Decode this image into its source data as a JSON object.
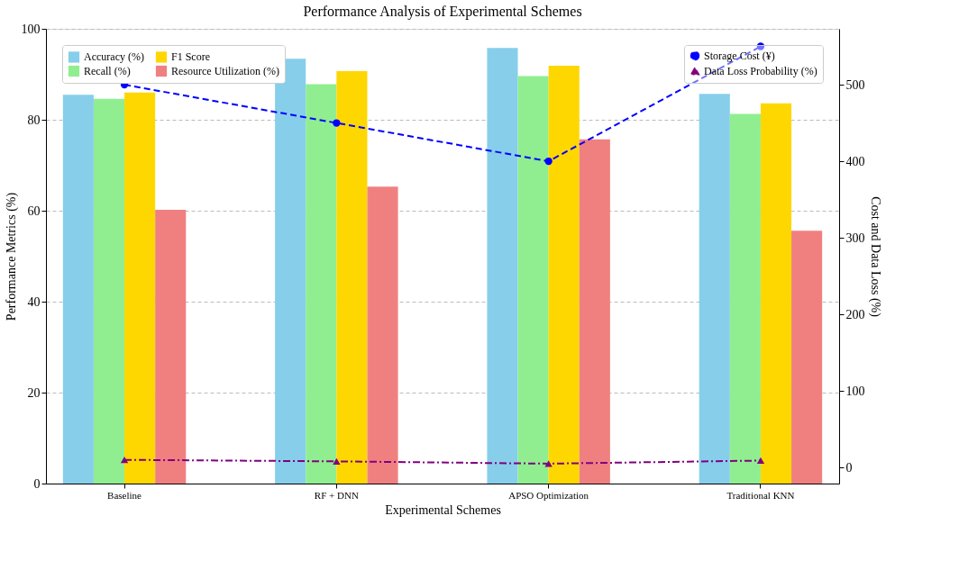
{
  "chart_data": {
    "type": "bar",
    "title": "Performance Analysis of Experimental Schemes",
    "xlabel": "Experimental Schemes",
    "ylabel": "Performance Metrics (%)",
    "y2label": "Cost and Data Loss (%)",
    "categories": [
      "Baseline",
      "RF + DNN",
      "APSO Optimization",
      "Traditional KNN"
    ],
    "series": [
      {
        "name": "Accuracy (%)",
        "color": "#87ceeb",
        "values": [
          85.5,
          93.4,
          95.8,
          85.7
        ]
      },
      {
        "name": "Recall (%)",
        "color": "#90ee90",
        "values": [
          84.6,
          87.8,
          89.6,
          81.3
        ]
      },
      {
        "name": "F1 Score",
        "color": "#ffd700",
        "values": [
          86.0,
          90.7,
          91.9,
          83.6
        ]
      },
      {
        "name": "Resource Utilization (%)",
        "color": "#f08080",
        "values": [
          60.2,
          65.3,
          75.7,
          55.6
        ]
      },
      {
        "name": "Storage Cost (¥)",
        "type": "line",
        "axis": "y2",
        "color": "#0000ff",
        "marker": "circle",
        "line_style": "dashed",
        "values": [
          500,
          450,
          400,
          550
        ]
      },
      {
        "name": "Data Loss Probability (%)",
        "type": "line",
        "axis": "y2",
        "color": "#800080",
        "marker": "triangle",
        "line_style": "dashdot",
        "values": [
          10,
          8,
          5,
          9
        ]
      }
    ],
    "ylim": [
      0,
      100
    ],
    "yticks": [
      0,
      20,
      40,
      60,
      80,
      100
    ],
    "y2lim": [
      -21,
      573
    ],
    "y2ticks": [
      0,
      100,
      200,
      300,
      400,
      500
    ],
    "grid": "y",
    "legend": "top left"
  }
}
